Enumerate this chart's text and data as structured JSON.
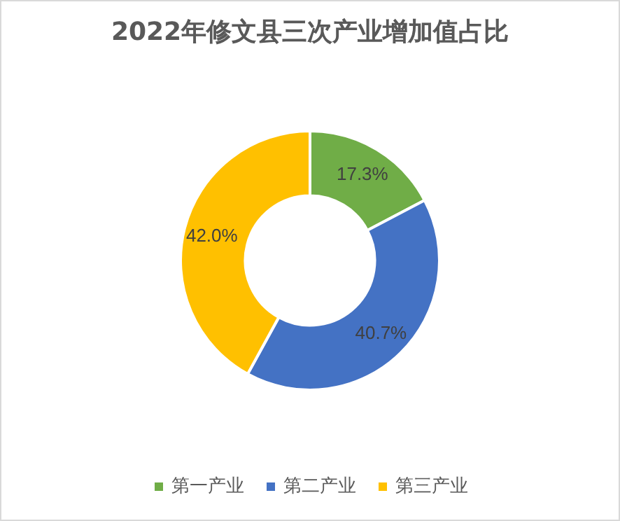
{
  "chart_data": {
    "type": "donut",
    "title": "2022年修文县三次产业增加值占比",
    "categories": [
      "第一产业",
      "第二产业",
      "第三产业"
    ],
    "values": [
      17.3,
      40.7,
      42.0
    ],
    "value_labels": [
      "17.3%",
      "40.7%",
      "42.0%"
    ],
    "colors": [
      "#70ad47",
      "#4472c4",
      "#ffc000"
    ],
    "legend": "bottom"
  }
}
